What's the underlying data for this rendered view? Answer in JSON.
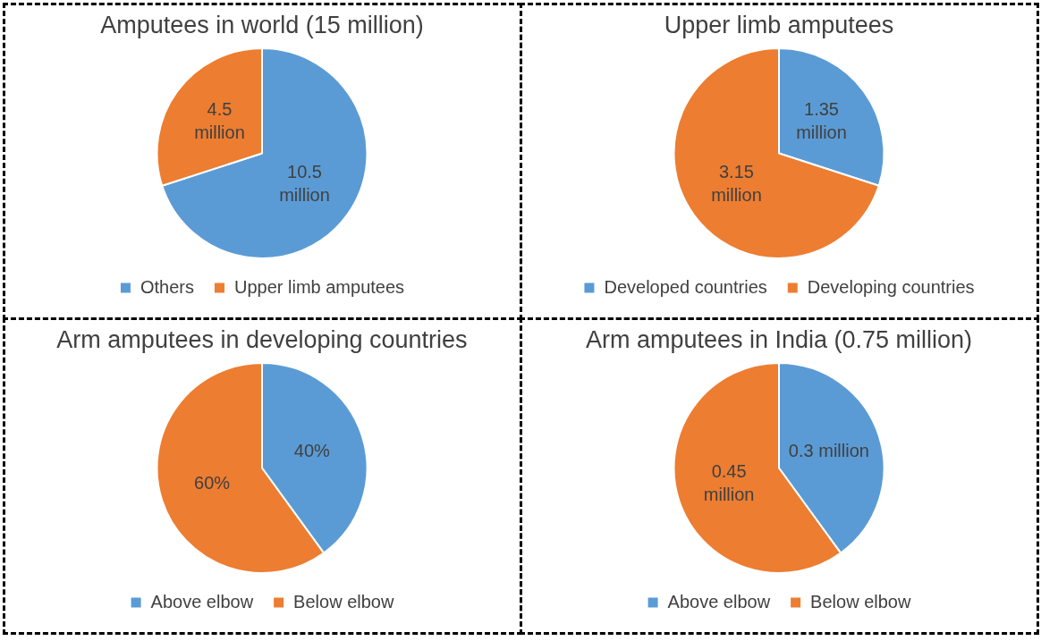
{
  "chart_data": [
    {
      "type": "pie",
      "title": "Amputees in world (15 million)",
      "categories": [
        "Others",
        "Upper limb amputees"
      ],
      "values": [
        10.5,
        4.5
      ],
      "colors": [
        "#5b9bd5",
        "#ed7d31"
      ],
      "value_labels": [
        "10.5 million",
        "4.5 million"
      ],
      "legend": "bottom"
    },
    {
      "type": "pie",
      "title": "Upper limb amputees",
      "categories": [
        "Developed countries",
        "Developing countries"
      ],
      "values": [
        1.35,
        3.15
      ],
      "colors": [
        "#5b9bd5",
        "#ed7d31"
      ],
      "value_labels": [
        "1.35 million",
        "3.15 million"
      ],
      "legend": "bottom"
    },
    {
      "type": "pie",
      "title": "Arm amputees in developing countries",
      "categories": [
        "Above elbow",
        "Below elbow"
      ],
      "values": [
        40,
        60
      ],
      "colors": [
        "#5b9bd5",
        "#ed7d31"
      ],
      "value_labels": [
        "40%",
        "60%"
      ],
      "legend": "bottom"
    },
    {
      "type": "pie",
      "title": "Arm amputees in India (0.75 million)",
      "categories": [
        "Above elbow",
        "Below elbow"
      ],
      "values": [
        0.3,
        0.45
      ],
      "colors": [
        "#5b9bd5",
        "#ed7d31"
      ],
      "value_labels": [
        "0.3 million",
        "0.45 million"
      ],
      "legend": "bottom"
    }
  ]
}
